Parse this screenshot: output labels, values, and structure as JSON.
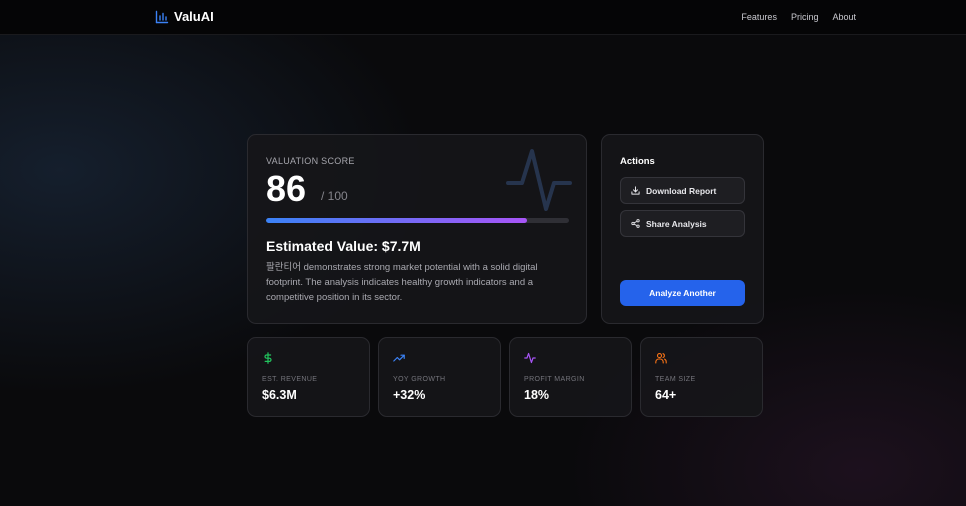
{
  "header": {
    "logo_text": "ValuAI",
    "nav": [
      "Features",
      "Pricing",
      "About"
    ]
  },
  "score_card": {
    "label": "VALUATION SCORE",
    "score": "86",
    "max": "/ 100",
    "progress_percent": 86,
    "estimated_value": "Estimated Value: $7.7M",
    "description": "팔란티어 demonstrates strong market potential with a solid digital footprint. The analysis indicates healthy growth indicators and a competitive position in its sector."
  },
  "actions": {
    "title": "Actions",
    "download_label": "Download Report",
    "share_label": "Share Analysis",
    "analyze_label": "Analyze Another"
  },
  "stats": [
    {
      "icon": "dollar-icon",
      "label": "EST. REVENUE",
      "value": "$6.3M",
      "color": "#22c55e"
    },
    {
      "icon": "trending-up-icon",
      "label": "YOY GROWTH",
      "value": "+32%",
      "color": "#3b82f6"
    },
    {
      "icon": "activity-icon",
      "label": "PROFIT MARGIN",
      "value": "18%",
      "color": "#a855f7"
    },
    {
      "icon": "users-icon",
      "label": "TEAM SIZE",
      "value": "64+",
      "color": "#f97316"
    }
  ],
  "colors": {
    "accent_blue": "#2563eb",
    "progress_start": "#3b82f6",
    "progress_end": "#a855f7"
  }
}
